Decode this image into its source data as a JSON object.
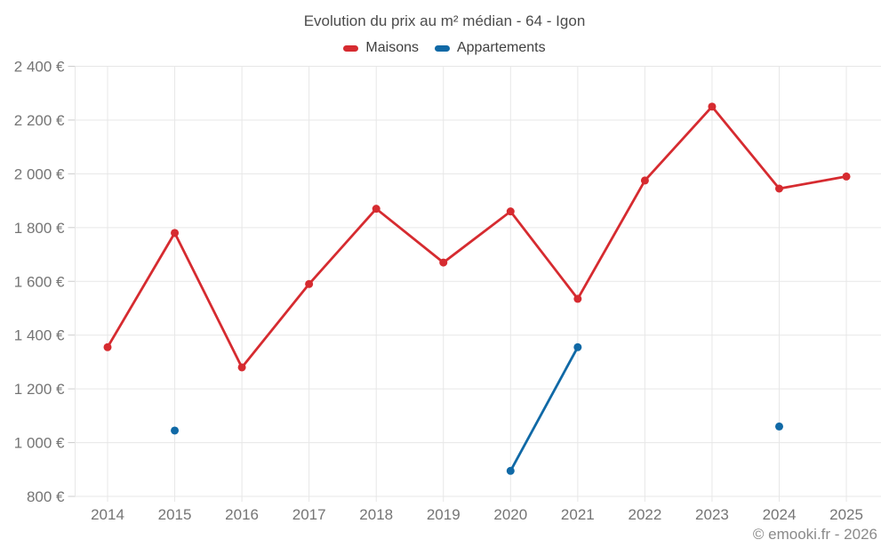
{
  "chart_data": {
    "type": "line",
    "title": "Evolution du prix au m² médian - 64 - Igon",
    "categories": [
      "2014",
      "2015",
      "2016",
      "2017",
      "2018",
      "2019",
      "2020",
      "2021",
      "2022",
      "2023",
      "2024",
      "2025"
    ],
    "series": [
      {
        "name": "Maisons",
        "color": "#d62b30",
        "values": [
          1355,
          1780,
          1280,
          1590,
          1870,
          1670,
          1860,
          1535,
          1975,
          2250,
          1945,
          1990
        ]
      },
      {
        "name": "Appartements",
        "color": "#1069a6",
        "values": [
          null,
          1045,
          null,
          null,
          null,
          null,
          895,
          1355,
          null,
          null,
          1060,
          null
        ]
      }
    ],
    "ylim": [
      800,
      2400
    ],
    "y_ticks": [
      {
        "value": 800,
        "label": "800 €"
      },
      {
        "value": 1000,
        "label": "1 000 €"
      },
      {
        "value": 1200,
        "label": "1 200 €"
      },
      {
        "value": 1400,
        "label": "1 400 €"
      },
      {
        "value": 1600,
        "label": "1 600 €"
      },
      {
        "value": 1800,
        "label": "1 800 €"
      },
      {
        "value": 2000,
        "label": "2 000 €"
      },
      {
        "value": 2200,
        "label": "2 200 €"
      },
      {
        "value": 2400,
        "label": "2 400 €"
      }
    ],
    "grid": true,
    "legend_position": "top",
    "grid_color": "#e7e7e7",
    "tick_color": "#cccccc",
    "axis_text_color": "#757575"
  },
  "footer": {
    "credit": "© emooki.fr - 2026"
  }
}
